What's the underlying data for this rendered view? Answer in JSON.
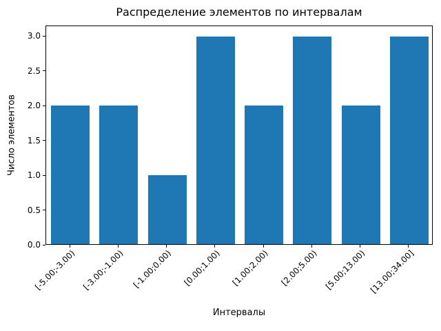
{
  "chart_data": {
    "type": "bar",
    "title": "Распределение элементов по интервалам",
    "xlabel": "Интервалы",
    "ylabel": "Число элементов",
    "categories": [
      "[-5.00;-3.00)",
      "[-3.00;-1.00)",
      "[-1.00;0.00)",
      "[0.00;1.00)",
      "[1.00;2.00)",
      "[2.00;5.00)",
      "[5.00;13.00)",
      "[13.00;34.00]"
    ],
    "values": [
      2,
      2,
      1,
      3,
      2,
      3,
      2,
      3
    ],
    "ylim": [
      0,
      3.15
    ],
    "yticks": [
      "0.0",
      "0.5",
      "1.0",
      "1.5",
      "2.0",
      "2.5",
      "3.0"
    ],
    "bar_color": "#1f77b4",
    "axis_color": "#000000",
    "grid": false,
    "legend": "none"
  }
}
